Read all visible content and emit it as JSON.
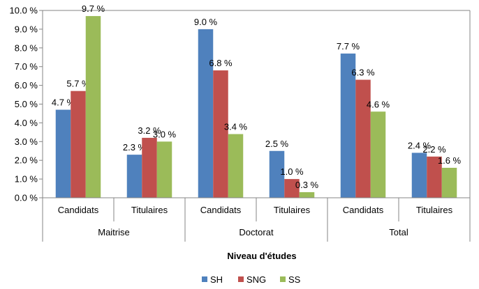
{
  "chart_data": {
    "type": "bar",
    "groups": [
      {
        "label": "Maitrise",
        "categories": [
          "Candidats",
          "Titulaires"
        ]
      },
      {
        "label": "Doctorat",
        "categories": [
          "Candidats",
          "Titulaires"
        ]
      },
      {
        "label": "Total",
        "categories": [
          "Candidats",
          "Titulaires"
        ]
      }
    ],
    "categories": [
      "Candidats",
      "Titulaires",
      "Candidats",
      "Titulaires",
      "Candidats",
      "Titulaires"
    ],
    "series": [
      {
        "name": "SH",
        "color": "#4F81BD",
        "values": [
          4.7,
          2.3,
          9.0,
          2.5,
          7.7,
          2.4
        ]
      },
      {
        "name": "SNG",
        "color": "#C0504D",
        "values": [
          5.7,
          3.2,
          6.8,
          1.0,
          6.3,
          2.2
        ]
      },
      {
        "name": "SS",
        "color": "#9BBB59",
        "values": [
          9.7,
          3.0,
          3.4,
          0.3,
          4.6,
          1.6
        ]
      }
    ],
    "data_labels": [
      [
        "4.7 %",
        "2.3 %",
        "9.0 %",
        "2.5 %",
        "7.7 %",
        "2.4 %"
      ],
      [
        "5.7 %",
        "3.2 %",
        "6.8 %",
        "1.0 %",
        "6.3 %",
        "2.2 %"
      ],
      [
        "9.7 %",
        "3.0 %",
        "3.4 %",
        "0.3 %",
        "4.6 %",
        "1.6 %"
      ]
    ],
    "y_ticks": [
      0,
      1,
      2,
      3,
      4,
      5,
      6,
      7,
      8,
      9,
      10
    ],
    "y_tick_labels": [
      "0.0 %",
      "1.0 %",
      "2.0 %",
      "3.0 %",
      "4.0 %",
      "5.0 %",
      "6.0 %",
      "7.0 %",
      "8.0 %",
      "9.0 %",
      "10.0 %"
    ],
    "ylim": [
      0,
      10
    ],
    "xlabel": "Niveau d'études",
    "ylabel": "",
    "grid": false,
    "legend_position": "bottom"
  }
}
